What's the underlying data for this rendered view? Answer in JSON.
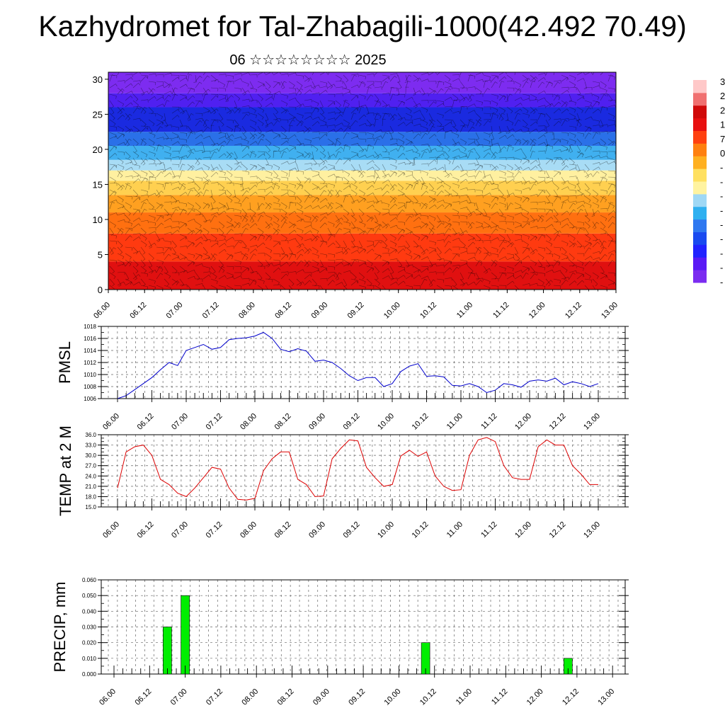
{
  "title": "Kazhydromet for Tal-Zhabagili-1000(42.492 70.49)",
  "subtitle": "06 ☆☆☆☆☆☆☆☆ 2025",
  "x_tick_labels": [
    "06.00",
    "06.12",
    "07.00",
    "07.12",
    "08.00",
    "08.12",
    "09.00",
    "09.12",
    "10.00",
    "10.12",
    "11.00",
    "11.12",
    "12.00",
    "12.12",
    "13.00"
  ],
  "colorbar": {
    "colors": [
      "#7b2cf0",
      "#5a1af5",
      "#2222ff",
      "#1a4af0",
      "#2f78f0",
      "#2fb0f0",
      "#9fd8f5",
      "#fff3a0",
      "#ffe060",
      "#ffb020",
      "#ff8010",
      "#ff4010",
      "#e81010",
      "#d00a0a",
      "#f07070",
      "#ffc8c8"
    ],
    "visible_labels": [
      "3",
      "2",
      "2",
      "1",
      "7",
      "0",
      "-",
      "-",
      "-",
      "-",
      "-",
      "-",
      "-",
      "-",
      "-"
    ]
  },
  "chart_data": [
    {
      "type": "heatmap",
      "title": "",
      "xlabel": "",
      "ylabel": "",
      "x_ticks": [
        "06.00",
        "06.12",
        "07.00",
        "07.12",
        "08.00",
        "08.12",
        "09.00",
        "09.12",
        "10.00",
        "10.12",
        "11.00",
        "11.12",
        "12.00",
        "12.12",
        "13.00"
      ],
      "y_ticks": [
        0,
        5,
        10,
        15,
        20,
        25,
        30
      ],
      "ylim": [
        0,
        31
      ],
      "color_bands": [
        {
          "y0": 0,
          "y1": 4,
          "color": "#e01010"
        },
        {
          "y0": 4,
          "y1": 8,
          "color": "#ff3a10"
        },
        {
          "y0": 8,
          "y1": 11,
          "color": "#ff7010"
        },
        {
          "y0": 11,
          "y1": 13.5,
          "color": "#ffa020"
        },
        {
          "y0": 13.5,
          "y1": 15.5,
          "color": "#ffd050"
        },
        {
          "y0": 15.5,
          "y1": 17,
          "color": "#fff0a0"
        },
        {
          "y0": 17,
          "y1": 18.5,
          "color": "#a8dcf5"
        },
        {
          "y0": 18.5,
          "y1": 20.5,
          "color": "#40b0f0"
        },
        {
          "y0": 20.5,
          "y1": 22.5,
          "color": "#2a70e8"
        },
        {
          "y0": 22.5,
          "y1": 26,
          "color": "#1a2ae0"
        },
        {
          "y0": 26,
          "y1": 28,
          "color": "#5020f0"
        },
        {
          "y0": 28,
          "y1": 31,
          "color": "#7d2cf0"
        }
      ]
    },
    {
      "type": "line",
      "ylabel": "PMSL",
      "ylim": [
        1006,
        1018
      ],
      "y_ticks": [
        1006,
        1008,
        1010,
        1012,
        1014,
        1016,
        1018
      ],
      "x_ticks": [
        "06.00",
        "06.12",
        "07.00",
        "07.12",
        "08.00",
        "08.12",
        "09.00",
        "09.12",
        "10.00",
        "10.12",
        "11.00",
        "11.12",
        "12.00",
        "12.12",
        "13.00"
      ],
      "series": [
        {
          "color": "#0000cc",
          "x": [
            0,
            3,
            6,
            9,
            12,
            15,
            18,
            21,
            24,
            27,
            30,
            33,
            36,
            39,
            42,
            45,
            48,
            51,
            54,
            57,
            60,
            63,
            66,
            69,
            72,
            75,
            78,
            81,
            84,
            87,
            90,
            93,
            96,
            99,
            102,
            105,
            108,
            111,
            114,
            117,
            120,
            123,
            126,
            129,
            132,
            135,
            138,
            141,
            144,
            147,
            150,
            153,
            156,
            159,
            162,
            165,
            168
          ],
          "values": [
            1006.0,
            1006.5,
            1007.5,
            1008.5,
            1009.5,
            1010.8,
            1012.0,
            1011.5,
            1014.0,
            1014.5,
            1015.0,
            1014.2,
            1014.5,
            1015.8,
            1016.0,
            1016.1,
            1016.4,
            1017.0,
            1016.0,
            1014.2,
            1013.8,
            1014.3,
            1013.9,
            1012.2,
            1012.4,
            1012.0,
            1011.0,
            1009.8,
            1009.0,
            1009.5,
            1009.5,
            1008.0,
            1008.5,
            1010.5,
            1011.4,
            1011.8,
            1009.7,
            1009.8,
            1009.6,
            1008.2,
            1008.1,
            1008.5,
            1008.0,
            1007.0,
            1007.4,
            1008.5,
            1008.3,
            1007.9,
            1008.9,
            1009.1,
            1008.9,
            1009.4,
            1008.3,
            1008.8,
            1008.5,
            1008.0,
            1008.5
          ]
        }
      ]
    },
    {
      "type": "line",
      "ylabel": "TEMP at 2 M",
      "ylim": [
        15.0,
        36.0
      ],
      "y_ticks": [
        15.0,
        18.0,
        21.0,
        24.0,
        27.0,
        30.0,
        33.0,
        36.0
      ],
      "x_ticks": [
        "06.00",
        "06.12",
        "07.00",
        "07.12",
        "08.00",
        "08.12",
        "09.00",
        "09.12",
        "10.00",
        "10.12",
        "11.00",
        "11.12",
        "12.00",
        "12.12",
        "13.00"
      ],
      "series": [
        {
          "color": "#dd0000",
          "x": [
            0,
            3,
            6,
            9,
            12,
            15,
            18,
            21,
            24,
            27,
            30,
            33,
            36,
            39,
            42,
            45,
            48,
            51,
            54,
            57,
            60,
            63,
            66,
            69,
            72,
            75,
            78,
            81,
            84,
            87,
            90,
            93,
            96,
            99,
            102,
            105,
            108,
            111,
            114,
            117,
            120,
            123,
            126,
            129,
            132,
            135,
            138,
            141,
            144,
            147,
            150,
            153,
            156,
            159,
            162,
            165,
            168
          ],
          "values": [
            20.5,
            31.0,
            32.5,
            33.0,
            30.0,
            23.0,
            21.5,
            19.0,
            18.0,
            20.5,
            23.5,
            26.5,
            26.0,
            20.5,
            17.2,
            17.0,
            17.5,
            25.5,
            29.0,
            31.0,
            31.0,
            23.0,
            21.5,
            18.0,
            18.2,
            29.0,
            32.0,
            34.5,
            34.2,
            26.5,
            23.5,
            21.0,
            21.5,
            29.8,
            31.5,
            29.7,
            31.0,
            24.0,
            21.0,
            19.8,
            20.0,
            30.0,
            34.5,
            35.2,
            34.0,
            27.0,
            23.5,
            23.0,
            23.0,
            32.5,
            34.5,
            33.0,
            33.0,
            27.0,
            24.5,
            21.5,
            21.5
          ]
        }
      ]
    },
    {
      "type": "bar",
      "ylabel": "PRECIP, mm",
      "ylim": [
        0,
        0.06
      ],
      "y_ticks": [
        "0.000",
        "0.010",
        "0.020",
        "0.030",
        "0.040",
        "0.050",
        "0.060"
      ],
      "x_ticks": [
        "06.00",
        "06.12",
        "07.00",
        "07.12",
        "08.00",
        "08.12",
        "09.00",
        "09.12",
        "10.00",
        "10.12",
        "11.00",
        "11.12",
        "12.00",
        "12.12",
        "13.00"
      ],
      "color": "#00ee00",
      "bars": [
        {
          "x": 18,
          "value": 0.03
        },
        {
          "x": 24,
          "value": 0.05
        },
        {
          "x": 105,
          "value": 0.02
        },
        {
          "x": 153,
          "value": 0.01
        }
      ]
    }
  ]
}
